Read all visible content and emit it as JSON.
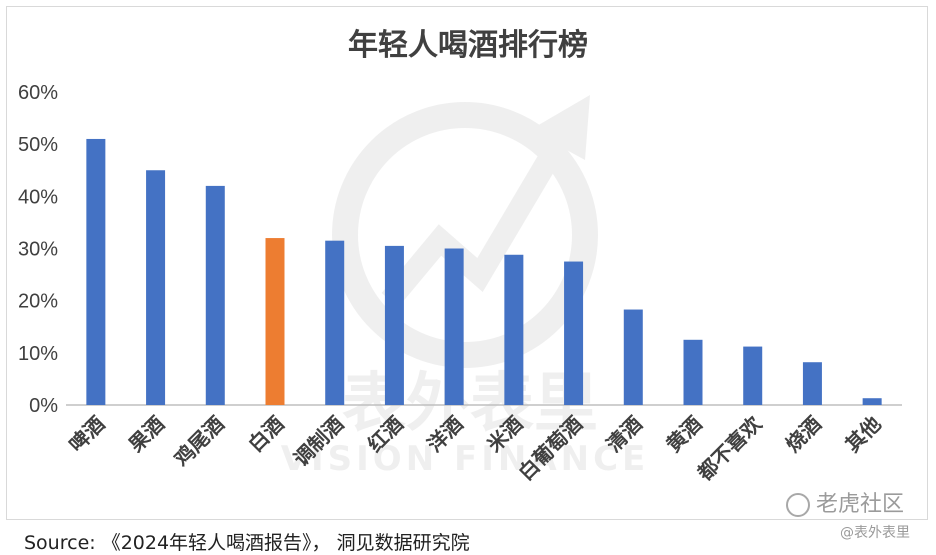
{
  "chart_data": {
    "type": "bar",
    "title": "年轻人喝酒排行榜",
    "categories": [
      "啤酒",
      "果酒",
      "鸡尾酒",
      "白酒",
      "调制酒",
      "红酒",
      "洋酒",
      "米酒",
      "白葡萄酒",
      "清酒",
      "黄酒",
      "都不喜欢",
      "烧酒",
      "其他"
    ],
    "values": [
      51,
      45,
      42,
      32,
      31.5,
      30.5,
      30,
      28.8,
      27.5,
      18.3,
      12.5,
      11.2,
      8.2,
      1.3
    ],
    "highlight_index": 3,
    "colors": {
      "bar": "#4472c4",
      "highlight": "#ed7d31",
      "axis": "#bfbfbf",
      "text": "#404040"
    },
    "ylim": [
      0,
      60
    ],
    "yticks": [
      "0%",
      "10%",
      "20%",
      "30%",
      "40%",
      "50%",
      "60%"
    ],
    "xlabel": "",
    "ylabel": "",
    "grid": false,
    "legend": "none"
  },
  "source_text": "Source:  《2024年轻人喝酒报告》， 洞见数据研究院",
  "watermarks": {
    "brand_cn": "表外表里",
    "brand_en": "VISION FINANCE",
    "community": "老虎社区",
    "handle": "@表外表里",
    "logo_icon": "tiger-community-logo-icon"
  }
}
